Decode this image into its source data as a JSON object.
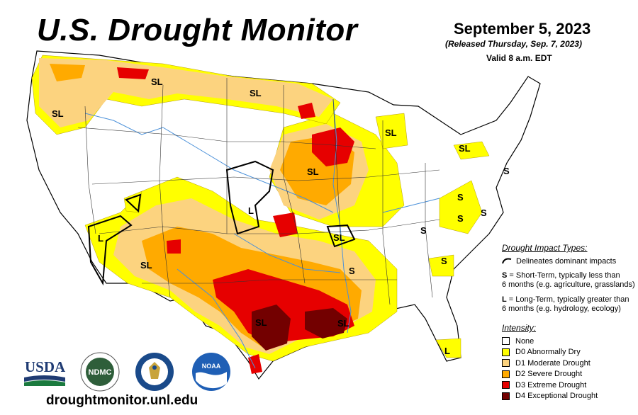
{
  "header": {
    "title": "U.S. Drought Monitor",
    "date": "September 5, 2023",
    "released": "(Released Thursday, Sep. 7, 2023)",
    "valid": "Valid 8 a.m. EDT"
  },
  "map_labels": [
    "SL",
    "SL",
    "SL",
    "SL",
    "SL",
    "SL",
    "SL",
    "SL",
    "SL",
    "SL",
    "L",
    "L",
    "L",
    "S",
    "S",
    "S",
    "S",
    "S",
    "S",
    "S"
  ],
  "impact": {
    "heading": "Drought Impact Types:",
    "delineates": "Delineates dominant impacts",
    "short_key": "S",
    "short_text": "= Short-Term, typically less than",
    "short_text2": "6 months (e.g. agriculture, grasslands)",
    "long_key": "L",
    "long_text": "= Long-Term, typically greater than",
    "long_text2": "6 months (e.g. hydrology, ecology)"
  },
  "legend": {
    "heading": "Intensity:",
    "items": [
      {
        "label": "None",
        "color": "#ffffff"
      },
      {
        "label": "D0 Abnormally Dry",
        "color": "#ffff00"
      },
      {
        "label": "D1 Moderate Drought",
        "color": "#fcd37f"
      },
      {
        "label": "D2 Severe Drought",
        "color": "#ffaa00"
      },
      {
        "label": "D3 Extreme Drought",
        "color": "#e60000"
      },
      {
        "label": "D4 Exceptional Drought",
        "color": "#730000"
      }
    ]
  },
  "logos": {
    "usda": "USDA",
    "ndmc": "NDMC",
    "noaa": "NOAA"
  },
  "footer": {
    "url": "droughtmonitor.unl.edu"
  }
}
